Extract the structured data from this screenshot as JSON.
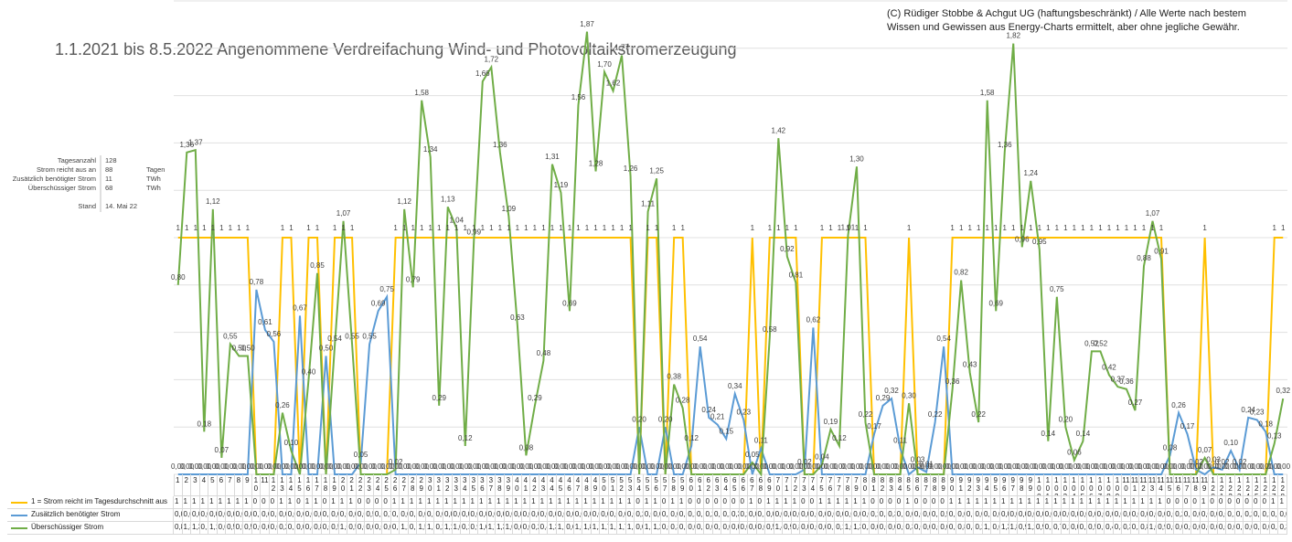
{
  "chart_data": {
    "type": "line",
    "title": "1.1.2021 bis 8.5.2022 Angenommene Verdreifachung Wind- und Photovoltaikstromerzeugung",
    "note": "(C) Rüdiger Stobbe & Achgut UG (haftungsbeschränkt) / Alle Werte nach bestem Wissen und Gewissen aus Energy-Charts ermittelt, aber ohne jegliche Gewähr.",
    "info": {
      "rows": [
        {
          "label": "Tagesanzahl",
          "value": 128
        },
        {
          "label": "Strom reicht aus an",
          "value": 88,
          "unit": "Tagen"
        },
        {
          "label": "Zusätzlich benötigter Strom",
          "value": 11,
          "unit": "TWh"
        },
        {
          "label": "Überschüssiger Strom",
          "value": 68,
          "unit": "TWh"
        }
      ],
      "stand_label": "Stand",
      "stand": "14. Mai 22"
    },
    "categories": [
      1,
      2,
      3,
      4,
      5,
      6,
      7,
      8,
      9,
      10,
      11,
      12,
      13,
      14,
      15,
      16,
      17,
      18,
      19,
      20,
      21,
      22,
      23,
      24,
      25,
      26,
      27,
      28,
      29,
      30,
      31,
      32,
      33,
      34,
      35,
      36,
      37,
      38,
      39,
      40,
      41,
      42,
      43,
      44,
      45,
      46,
      47,
      48,
      49,
      50,
      51,
      52,
      53,
      54,
      55,
      56,
      57,
      58,
      59,
      60,
      61,
      62,
      63,
      64,
      65,
      66,
      67,
      68,
      69,
      70,
      71,
      72,
      73,
      74,
      75,
      76,
      77,
      78,
      79,
      80,
      81,
      82,
      83,
      84,
      85,
      86,
      87,
      88,
      89,
      90,
      91,
      92,
      93,
      94,
      95,
      96,
      97,
      98,
      99,
      100,
      101,
      102,
      103,
      104,
      105,
      106,
      107,
      108,
      109,
      110,
      111,
      112,
      113,
      114,
      115,
      116,
      117,
      118,
      119,
      120,
      121,
      122,
      123,
      124,
      125,
      126,
      127,
      128
    ],
    "ylim": [
      0,
      2
    ],
    "yticks": [
      0,
      0.2,
      0.4,
      0.6,
      0.8,
      1,
      1.2,
      1.4,
      1.6,
      1.8,
      2
    ],
    "grid": true,
    "series": [
      {
        "name": "1 = Strom reicht im Tagesdurchschnitt aus",
        "color": "#ffc000",
        "values": [
          1,
          1,
          1,
          1,
          1,
          1,
          1,
          1,
          1,
          0,
          0,
          0,
          1,
          1,
          0,
          1,
          1,
          0,
          1,
          1,
          1,
          0,
          0,
          0,
          0,
          1,
          1,
          1,
          1,
          1,
          1,
          1,
          1,
          1,
          1,
          1,
          1,
          1,
          1,
          1,
          1,
          1,
          1,
          1,
          1,
          1,
          1,
          1,
          1,
          1,
          1,
          1,
          1,
          0,
          1,
          1,
          0,
          1,
          1,
          0,
          0,
          0,
          0,
          0,
          0,
          0,
          1,
          0,
          1,
          1,
          1,
          1,
          0,
          0,
          1,
          1,
          1,
          1,
          1,
          1,
          0,
          0,
          0,
          0,
          1,
          0,
          0,
          0,
          0,
          1,
          1,
          1,
          1,
          1,
          1,
          1,
          1,
          1,
          1,
          1,
          1,
          1,
          1,
          1,
          1,
          1,
          1,
          1,
          1,
          1,
          1,
          1,
          1,
          1,
          0,
          0,
          0,
          0,
          1,
          0,
          0,
          0,
          0,
          0,
          0,
          0,
          1,
          1
        ]
      },
      {
        "name": "Zusätzlich benötigter Strom",
        "color": "#5b9bd5",
        "values": [
          0,
          0,
          0,
          0,
          0,
          0,
          0,
          0,
          0,
          0.78,
          0.61,
          0.56,
          0,
          0,
          0.67,
          0,
          0,
          0.5,
          0,
          0,
          0,
          0.05,
          0.55,
          0.69,
          0.75,
          0,
          0,
          0,
          0,
          0,
          0,
          0,
          0,
          0,
          0,
          0,
          0,
          0,
          0,
          0,
          0,
          0,
          0,
          0,
          0,
          0,
          0,
          0,
          0,
          0,
          0,
          0,
          0,
          0.2,
          0,
          0,
          0.2,
          0,
          0,
          0.12,
          0.54,
          0.24,
          0.21,
          0.15,
          0.34,
          0.23,
          0,
          0.11,
          0,
          0,
          0,
          0,
          0.02,
          0.62,
          0,
          0,
          0,
          0,
          0,
          0,
          0.17,
          0.29,
          0.32,
          0.11,
          0,
          0.03,
          0.01,
          0.22,
          0.54,
          0,
          0,
          0,
          0,
          0,
          0,
          0,
          0,
          0,
          0,
          0,
          0,
          0,
          0,
          0,
          0,
          0,
          0,
          0,
          0,
          0,
          0,
          0,
          0,
          0,
          0.08,
          0.26,
          0.17,
          0.02,
          0,
          0.03,
          0.02,
          0.1,
          0.02,
          0.24,
          0.23,
          0.18,
          0,
          0
        ],
        "value_labels": [
          "0,00",
          "0,00",
          "0,00",
          "0,00",
          "0,00",
          "0,00",
          "0,00",
          "0,00",
          "0,00",
          "0,78",
          "0,61",
          "0,56",
          "0,00",
          "0,00",
          "0,67",
          "0,00",
          "0,00",
          "0,50",
          "0,00",
          "0,00",
          "0,00",
          "0,05",
          "0,55",
          "0,69",
          "0,75",
          "0,00",
          "0,00",
          "0,00",
          "0,00",
          "0,00",
          "0,00",
          "0,00",
          "0,00",
          "0,00",
          "0,00",
          "0,00",
          "0,00",
          "0,00",
          "0,00",
          "0,00",
          "0,00",
          "0,00",
          "0,00",
          "0,00",
          "0,00",
          "0,00",
          "0,00",
          "0,00",
          "0,00",
          "0,00",
          "0,00",
          "0,00",
          "0,00",
          "0,20",
          "0,00",
          "0,00",
          "0,20",
          "0,00",
          "0,00",
          "0,12",
          "0,54",
          "0,24",
          "0,21",
          "0,15",
          "0,34",
          "0,23",
          "0,00",
          "0,11",
          "0,00",
          "0,00",
          "0,00",
          "0,00",
          "0,02",
          "0,62",
          "0,00",
          "0,00",
          "0,00",
          "0,00",
          "0,00",
          "0,00",
          "0,17",
          "0,29",
          "0,32",
          "0,11",
          "0,00",
          "0,03",
          "0,01",
          "0,22",
          "0,54",
          "0,00",
          "0,00",
          "0,00",
          "0,00",
          "0,00",
          "0,00",
          "0,00",
          "0,00",
          "0,00",
          "0,00",
          "0,00",
          "0,00",
          "0,00",
          "0,00",
          "0,00",
          "0,00",
          "0,00",
          "0,00",
          "0,00",
          "0,00",
          "0,00",
          "0,00",
          "0,00",
          "0,00",
          "0,00",
          "0,08",
          "0,26",
          "0,17",
          "0,02",
          "0,00",
          "0,03",
          "0,02",
          "0,10",
          "0,02",
          "0,24",
          "0,23",
          "0,18",
          "0,00",
          "0,00"
        ]
      },
      {
        "name": "Überschüssiger Strom",
        "color": "#70ad47",
        "values": [
          0.8,
          1.36,
          1.37,
          0.18,
          1.12,
          0.07,
          0.55,
          0.5,
          0.5,
          0,
          0,
          0,
          0.26,
          0.1,
          0,
          0.4,
          0.85,
          0,
          0.54,
          1.07,
          0.55,
          0,
          0,
          0,
          0,
          0.02,
          1.12,
          0.79,
          1.58,
          1.34,
          0.29,
          1.13,
          1.04,
          0.12,
          0.99,
          1.66,
          1.72,
          1.36,
          1.09,
          0.63,
          0.08,
          0.29,
          0.48,
          1.31,
          1.19,
          0.69,
          1.56,
          1.87,
          1.28,
          1.7,
          1.62,
          1.77,
          1.26,
          0,
          1.11,
          1.25,
          0,
          0.38,
          0.28,
          0,
          0,
          0,
          0,
          0,
          0,
          0,
          0.05,
          0,
          0.58,
          1.42,
          0.92,
          0.81,
          0,
          0,
          0.04,
          0.19,
          0.12,
          1.01,
          1.3,
          0.22,
          0,
          0,
          0,
          0,
          0.3,
          0,
          0,
          0,
          0,
          0.36,
          0.82,
          0.43,
          0.22,
          1.58,
          0.69,
          1.36,
          1.82,
          0.96,
          1.24,
          0.95,
          0.14,
          0.75,
          0.2,
          0.06,
          0.14,
          0.52,
          0.52,
          0.42,
          0.37,
          0.36,
          0.27,
          0.88,
          1.07,
          0.91,
          0,
          0,
          0,
          0,
          0.07,
          0,
          0,
          0,
          0,
          0,
          0,
          0,
          0.13,
          0.32
        ],
        "value_labels": [
          "0,80",
          "1,36",
          "1,37",
          "0,18",
          "1,12",
          "0,07",
          "0,55",
          "0,50",
          "0,50",
          "0,00",
          "0,00",
          "0,00",
          "0,26",
          "0,10",
          "0,00",
          "0,40",
          "0,85",
          "0,00",
          "0,54",
          "1,07",
          "0,55",
          "0,00",
          "0,00",
          "0,00",
          "0,00",
          "0,02",
          "1,12",
          "0,79",
          "1,58",
          "1,34",
          "0,29",
          "1,13",
          "1,04",
          "0,12",
          "0,99",
          "1,66",
          "1,72",
          "1,36",
          "1,09",
          "0,63",
          "0,08",
          "0,29",
          "0,48",
          "1,31",
          "1,19",
          "0,69",
          "1,56",
          "1,87",
          "1,28",
          "1,70",
          "1,62",
          "1,77",
          "1,26",
          "0,00",
          "1,11",
          "1,25",
          "0,00",
          "0,38",
          "0,28",
          "0,00",
          "0,00",
          "0,00",
          "0,00",
          "0,00",
          "0,00",
          "0,00",
          "0,05",
          "0,00",
          "0,58",
          "1,42",
          "0,92",
          "0,81",
          "0,00",
          "0,00",
          "0,04",
          "0,19",
          "0,12",
          "1,01",
          "1,30",
          "0,22",
          "0,00",
          "0,00",
          "0,00",
          "0,00",
          "0,30",
          "0,00",
          "0,00",
          "0,00",
          "0,00",
          "0,36",
          "0,82",
          "0,43",
          "0,22",
          "1,58",
          "0,69",
          "1,36",
          "1,82",
          "0,96",
          "1,24",
          "0,95",
          "0,14",
          "0,75",
          "0,20",
          "0,06",
          "0,14",
          "0,52",
          "0,52",
          "0,42",
          "0,37",
          "0,36",
          "0,27",
          "0,88",
          "1,07",
          "0,91",
          "0,00",
          "0,00",
          "0,00",
          "0,00",
          "0,07",
          "0,00",
          "0,00",
          "0,00",
          "0,00",
          "0,00",
          "0,00",
          "0,00",
          "0,13",
          "0,32"
        ]
      }
    ]
  }
}
